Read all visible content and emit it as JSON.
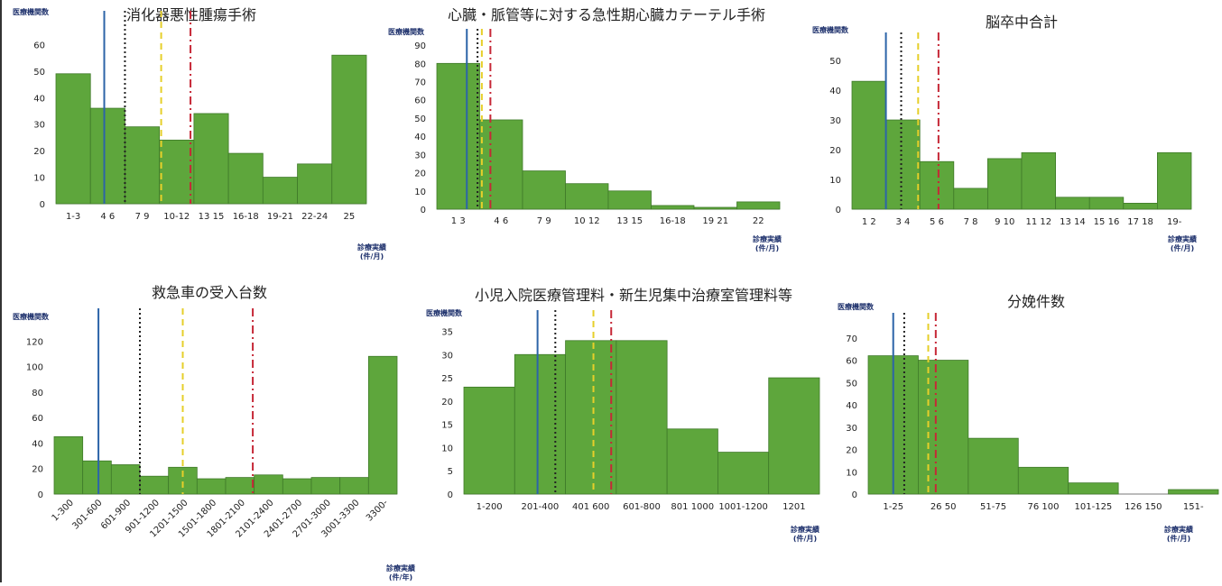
{
  "colors": {
    "bar_fill": "#5ea63c",
    "bar_edge": "#3f7a29",
    "line_blue": "#2c64a8",
    "line_black": "#222222",
    "line_yellow": "#e6cf2a",
    "line_red": "#c62837",
    "axis": "#777777",
    "text": "#222222"
  },
  "reference_lines": [
    {
      "color_key": "line_blue",
      "style": "solid"
    },
    {
      "color_key": "line_black",
      "style": "dotted"
    },
    {
      "color_key": "line_yellow",
      "style": "dashed"
    },
    {
      "color_key": "line_red",
      "style": "dashdot"
    }
  ],
  "chart_data": [
    {
      "type": "bar",
      "title": "消化器悪性腫瘍手術",
      "ylabel": "医療機関数",
      "xlabel": "診療実績\n(件/月)",
      "ylim": [
        0,
        70
      ],
      "yticks": [
        0,
        10,
        20,
        30,
        40,
        50,
        60
      ],
      "categories": [
        "1-3",
        "4-6",
        "7-9",
        "10-12",
        "13-15",
        "16-18",
        "19-21",
        "22-24",
        "25-"
      ],
      "tick_labels": [
        "1-3",
        "4 6",
        "7 9",
        "10-12",
        "13 15",
        "16-18",
        "19-21",
        "22-24",
        "25"
      ],
      "values": [
        49,
        36,
        29,
        24,
        34,
        19,
        10,
        15,
        56
      ],
      "ref_lines": [
        1.4,
        2.0,
        3.05,
        3.9
      ],
      "rotate_ticks": false
    },
    {
      "type": "bar",
      "title": "心臓・脈管等に対する急性期心臓カテーテル手術",
      "ylabel": "医療機関数",
      "xlabel": "診療実績\n(件/月)",
      "ylim": [
        0,
        95
      ],
      "yticks": [
        0,
        10,
        20,
        30,
        40,
        50,
        60,
        70,
        80,
        90
      ],
      "categories": [
        "1-3",
        "4-6",
        "7-9",
        "10-12",
        "13-15",
        "16-18",
        "19-21",
        "22-"
      ],
      "tick_labels": [
        "1 3",
        "4 6",
        "7 9",
        "10 12",
        "13 15",
        "16-18",
        "19 21",
        "22"
      ],
      "values": [
        80,
        49,
        21,
        14,
        10,
        2,
        1,
        4
      ],
      "ref_lines": [
        0.7,
        0.95,
        1.05,
        1.25
      ],
      "rotate_ticks": false
    },
    {
      "type": "bar",
      "title": "脳卒中合計",
      "ylabel": "医療機関数",
      "xlabel": "診療実績\n(件/月)",
      "ylim": [
        0,
        57
      ],
      "yticks": [
        0,
        10,
        20,
        30,
        40,
        50
      ],
      "categories": [
        "1-2",
        "3-4",
        "5-6",
        "7-8",
        "9-10",
        "11-12",
        "13-14",
        "15-16",
        "17-18",
        "19-"
      ],
      "tick_labels": [
        "1 2",
        "3 4",
        "5 6",
        "7 8",
        "9 10",
        "11 12",
        "13 14",
        "15 16",
        "17 18",
        "19-"
      ],
      "values": [
        43,
        30,
        16,
        7,
        17,
        19,
        4,
        4,
        2,
        19
      ],
      "ref_lines": [
        1.0,
        1.45,
        1.95,
        2.55
      ],
      "rotate_ticks": false
    },
    {
      "type": "bar",
      "title": "救急車の受入台数",
      "ylabel": "医療機関数",
      "xlabel": "診療実績\n(件/年)",
      "ylim": [
        0,
        140
      ],
      "yticks": [
        0,
        20,
        40,
        60,
        80,
        100,
        120
      ],
      "categories": [
        "1-300",
        "301-600",
        "601-900",
        "901-1200",
        "1201-1500",
        "1501-1800",
        "1801-2100",
        "2101-2400",
        "2401-2700",
        "2701-3000",
        "3001-3300",
        "3300-"
      ],
      "tick_labels": [
        "1-300",
        "301-600",
        "601-900",
        "901-1200",
        "1201-1500",
        "1501-1800",
        "1801-2100",
        "2101-2400",
        "2401-2700",
        "2701-3000",
        "3001-3300",
        "3300-"
      ],
      "values": [
        45,
        26,
        23,
        14,
        21,
        12,
        13,
        15,
        12,
        13,
        13,
        108
      ],
      "ref_lines": [
        1.55,
        3.0,
        4.5,
        6.95
      ],
      "rotate_ticks": true
    },
    {
      "type": "bar",
      "title": "小児入院医療管理料・新生児集中治療室管理料等",
      "ylabel": "医療機関数",
      "xlabel": "診療実績\n(件/月)",
      "ylim": [
        0,
        38
      ],
      "yticks": [
        0,
        5,
        10,
        15,
        20,
        25,
        30,
        35
      ],
      "categories": [
        "1-200",
        "201-400",
        "401-600",
        "601-800",
        "801-1000",
        "1001-1200",
        "1201-"
      ],
      "tick_labels": [
        "1-200",
        "201-400",
        "401 600",
        "601-800",
        "801 1000",
        "1001-1200",
        "1201"
      ],
      "values": [
        23,
        30,
        33,
        33,
        14,
        9,
        25
      ],
      "ref_lines": [
        1.45,
        1.8,
        2.55,
        2.9
      ],
      "rotate_ticks": false
    },
    {
      "type": "bar",
      "title": "分娩件数",
      "ylabel": "医療機関数",
      "xlabel": "診療実績\n(件/月)",
      "ylim": [
        0,
        78
      ],
      "yticks": [
        0,
        10,
        20,
        30,
        40,
        50,
        60,
        70
      ],
      "categories": [
        "1-25",
        "26-50",
        "51-75",
        "76-100",
        "101-125",
        "126-150",
        "151-"
      ],
      "tick_labels": [
        "1-25",
        "26 50",
        "51-75",
        "76 100",
        "101-125",
        "126 150",
        "151-"
      ],
      "values": [
        62,
        60,
        25,
        12,
        5,
        0,
        2
      ],
      "ref_lines": [
        0.5,
        0.72,
        1.2,
        1.35
      ],
      "rotate_ticks": false
    }
  ]
}
